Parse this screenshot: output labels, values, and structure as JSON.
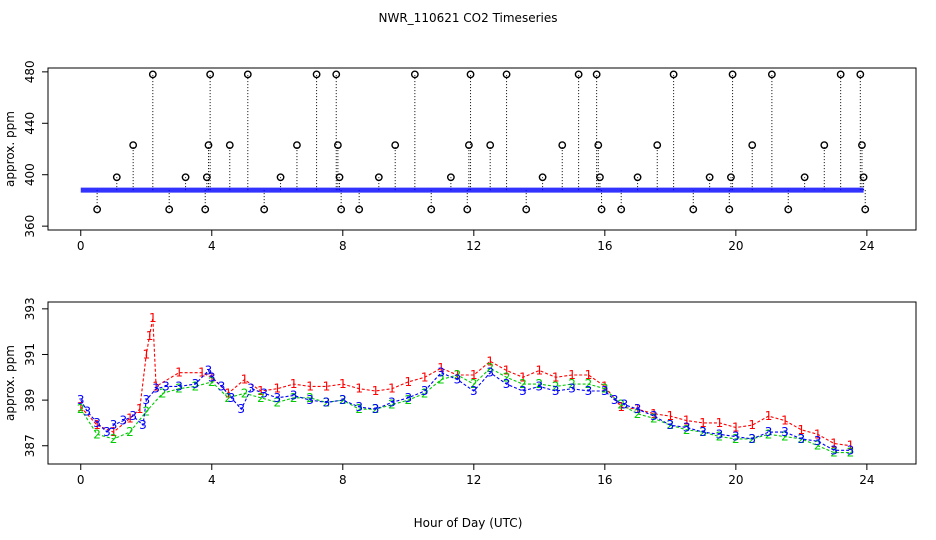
{
  "title": "NWR_110621  CO2 Timeseries",
  "xlabel": "Hour of Day (UTC)",
  "colors": {
    "line1": "#ff0000",
    "line2": "#00cc00",
    "line3": "#0000ff",
    "raw": "#000000",
    "cyan": "#00cccc"
  },
  "chart_data": [
    {
      "type": "scatter",
      "title": "",
      "xlabel": "",
      "ylabel": "approx. ppm",
      "xlim": [
        -1,
        25.5
      ],
      "ylim": [
        357,
        483
      ],
      "xticks": [
        0,
        4,
        8,
        12,
        16,
        20,
        24
      ],
      "yticks": [
        360,
        400,
        440,
        480
      ],
      "ytick_labels": [
        "360",
        "400",
        "440",
        "480"
      ],
      "baseline": 388,
      "series": [
        {
          "marker": "circle",
          "color": "#000000",
          "x": [
            0.5,
            1.1,
            1.6,
            2.2,
            2.7,
            3.2,
            3.8,
            3.85,
            3.9,
            3.95,
            4.55,
            5.1,
            5.6,
            6.1,
            6.6,
            7.2,
            7.8,
            7.85,
            7.9,
            7.95,
            8.5,
            9.1,
            9.6,
            10.2,
            10.7,
            11.3,
            11.8,
            11.85,
            11.9,
            12.5,
            13.0,
            13.6,
            14.1,
            14.7,
            15.2,
            15.75,
            15.8,
            15.85,
            15.9,
            16.5,
            17.0,
            17.6,
            18.1,
            18.7,
            19.2,
            19.8,
            19.85,
            19.9,
            20.5,
            21.1,
            21.6,
            22.1,
            22.7,
            23.2,
            23.8,
            23.85,
            23.9,
            23.95
          ],
          "y": [
            373,
            398,
            423,
            478,
            373,
            398,
            373,
            398,
            423,
            478,
            423,
            478,
            373,
            398,
            423,
            478,
            478,
            423,
            398,
            373,
            373,
            398,
            423,
            478,
            373,
            398,
            373,
            423,
            478,
            423,
            478,
            373,
            398,
            423,
            478,
            478,
            423,
            398,
            373,
            373,
            398,
            423,
            478,
            373,
            398,
            373,
            398,
            478,
            423,
            478,
            373,
            398,
            423,
            478,
            478,
            423,
            398,
            373
          ]
        }
      ]
    },
    {
      "type": "line",
      "title": "",
      "xlabel": "",
      "ylabel": "approx. ppm",
      "xlim": [
        -1,
        25.5
      ],
      "ylim": [
        386.2,
        393.3
      ],
      "xticks": [
        0,
        4,
        8,
        12,
        16,
        20,
        24
      ],
      "yticks": [
        387,
        389,
        391,
        393
      ],
      "ytick_labels": [
        "387",
        "389",
        "391",
        "393"
      ],
      "series": [
        {
          "name": "1",
          "color": "#ff0000",
          "x": [
            0.0,
            0.5,
            1.0,
            1.5,
            1.8,
            2.0,
            2.1,
            2.2,
            2.3,
            3.0,
            3.7,
            4.0,
            4.5,
            5.0,
            5.5,
            6.0,
            6.5,
            7.0,
            7.5,
            8.0,
            8.5,
            9.0,
            9.5,
            10.0,
            10.5,
            11.0,
            11.5,
            12.0,
            12.5,
            13.0,
            13.5,
            14.0,
            14.5,
            15.0,
            15.5,
            16.0,
            16.5,
            17.0,
            17.5,
            18.0,
            18.5,
            19.0,
            19.5,
            20.0,
            20.5,
            21.0,
            21.5,
            22.0,
            22.5,
            23.0,
            23.5
          ],
          "y": [
            388.7,
            387.9,
            387.6,
            388.2,
            388.6,
            391.0,
            391.8,
            392.6,
            389.6,
            390.2,
            390.2,
            390.0,
            389.3,
            389.9,
            389.4,
            389.5,
            389.7,
            389.6,
            389.6,
            389.7,
            389.5,
            389.4,
            389.5,
            389.8,
            390.0,
            390.4,
            390.1,
            390.1,
            390.7,
            390.3,
            390.0,
            390.3,
            390.0,
            390.1,
            390.1,
            389.6,
            388.7,
            388.6,
            388.4,
            388.3,
            388.1,
            388.0,
            388.0,
            387.8,
            387.9,
            388.3,
            388.1,
            387.7,
            387.5,
            387.1,
            387.0
          ]
        },
        {
          "name": "2",
          "color": "#00cc00",
          "x": [
            0.0,
            0.5,
            1.0,
            1.5,
            2.0,
            2.5,
            3.0,
            3.5,
            4.0,
            4.5,
            5.0,
            5.5,
            6.0,
            6.5,
            7.0,
            7.5,
            8.0,
            8.5,
            9.0,
            9.5,
            10.0,
            10.5,
            11.0,
            11.5,
            12.0,
            12.5,
            13.0,
            13.5,
            14.0,
            14.5,
            15.0,
            15.5,
            16.0,
            16.5,
            17.0,
            17.5,
            18.0,
            18.5,
            19.0,
            19.5,
            20.0,
            20.5,
            21.0,
            21.5,
            22.0,
            22.5,
            23.0,
            23.5
          ],
          "y": [
            388.6,
            387.5,
            387.3,
            387.6,
            388.5,
            389.3,
            389.5,
            389.6,
            389.8,
            389.1,
            389.3,
            389.1,
            388.9,
            389.1,
            389.1,
            388.9,
            389.0,
            388.6,
            388.6,
            388.8,
            389.0,
            389.3,
            389.9,
            390.1,
            389.7,
            390.4,
            390.0,
            389.7,
            389.7,
            389.6,
            389.7,
            389.7,
            389.5,
            388.8,
            388.4,
            388.2,
            387.9,
            387.7,
            387.6,
            387.4,
            387.3,
            387.3,
            387.5,
            387.4,
            387.3,
            387.0,
            386.7,
            386.7
          ]
        },
        {
          "name": "3",
          "color": "#0000ff",
          "x": [
            0.0,
            0.2,
            0.5,
            0.8,
            1.0,
            1.3,
            1.6,
            1.9,
            2.0,
            2.3,
            2.6,
            3.0,
            3.5,
            3.9,
            4.0,
            4.3,
            4.6,
            4.9,
            5.2,
            5.6,
            6.0,
            6.5,
            7.0,
            7.5,
            8.0,
            8.5,
            9.0,
            9.5,
            10.0,
            10.5,
            11.0,
            11.5,
            12.0,
            12.5,
            13.0,
            13.5,
            14.0,
            14.5,
            15.0,
            15.5,
            16.0,
            16.3,
            16.6,
            17.0,
            17.5,
            18.0,
            18.5,
            19.0,
            19.5,
            20.0,
            20.5,
            21.0,
            21.5,
            22.0,
            22.5,
            23.0,
            23.5
          ],
          "y": [
            389.0,
            388.5,
            388.0,
            387.6,
            387.9,
            388.1,
            388.3,
            387.9,
            389.0,
            389.5,
            389.6,
            389.6,
            389.7,
            390.3,
            390.0,
            389.6,
            389.1,
            388.6,
            389.5,
            389.3,
            389.1,
            389.2,
            389.0,
            388.9,
            389.0,
            388.7,
            388.6,
            388.9,
            389.1,
            389.4,
            390.2,
            389.9,
            389.4,
            390.2,
            389.7,
            389.4,
            389.6,
            389.4,
            389.5,
            389.4,
            389.4,
            389.0,
            388.8,
            388.6,
            388.3,
            387.9,
            387.8,
            387.6,
            387.5,
            387.4,
            387.3,
            387.6,
            387.6,
            387.3,
            387.2,
            386.8,
            386.8
          ]
        }
      ]
    }
  ]
}
